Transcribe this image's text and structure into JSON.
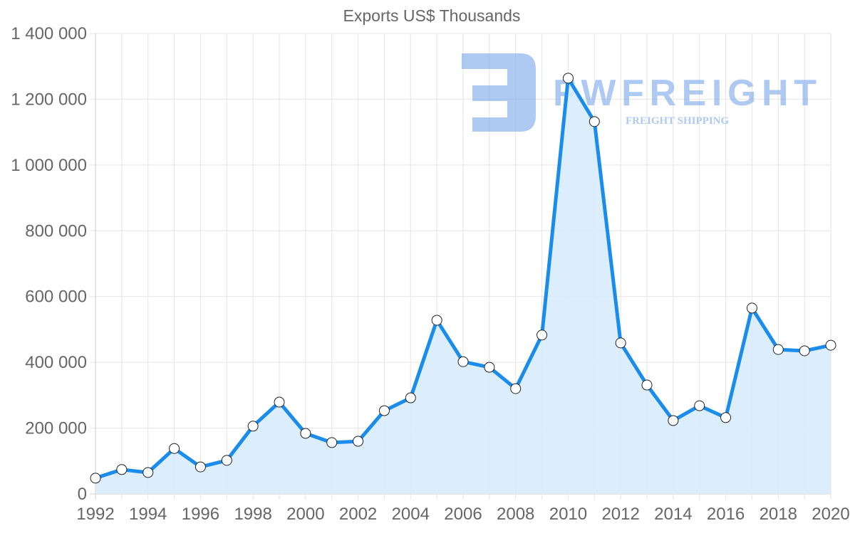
{
  "chart_data": {
    "type": "area",
    "title": "Exports US$ Thousands",
    "xlabel": "",
    "ylabel": "",
    "x": [
      1992,
      1993,
      1994,
      1995,
      1996,
      1997,
      1998,
      1999,
      2000,
      2001,
      2002,
      2003,
      2004,
      2005,
      2006,
      2007,
      2008,
      2009,
      2010,
      2011,
      2012,
      2013,
      2014,
      2015,
      2016,
      2017,
      2018,
      2019,
      2020
    ],
    "series": [
      {
        "name": "Exports US$ Thousands",
        "color": "#1a8ceb",
        "fill": "#d8ebfb",
        "values": [
          48000,
          74000,
          65000,
          138000,
          82000,
          102000,
          206000,
          279000,
          184000,
          156000,
          160000,
          253000,
          292000,
          528000,
          402000,
          385000,
          320000,
          483000,
          1264000,
          1132000,
          459000,
          331000,
          223000,
          268000,
          232000,
          565000,
          439000,
          435000,
          452000
        ]
      }
    ],
    "ylim": [
      0,
      1400000
    ],
    "yticks": [
      0,
      200000,
      400000,
      600000,
      800000,
      1000000,
      1200000,
      1400000
    ],
    "ytick_labels": [
      "0",
      "200 000",
      "400 000",
      "600 000",
      "800 000",
      "1 000 000",
      "1 200 000",
      "1 400 000"
    ],
    "xtick_labels": [
      "1992",
      "1994",
      "1996",
      "1998",
      "2000",
      "2002",
      "2004",
      "2006",
      "2008",
      "2010",
      "2012",
      "2014",
      "2016",
      "2018",
      "2020"
    ],
    "grid": true,
    "legend": "none"
  },
  "watermark": {
    "brand": "FWFREIGHT",
    "tagline": "FREIGHT SHIPPING"
  }
}
